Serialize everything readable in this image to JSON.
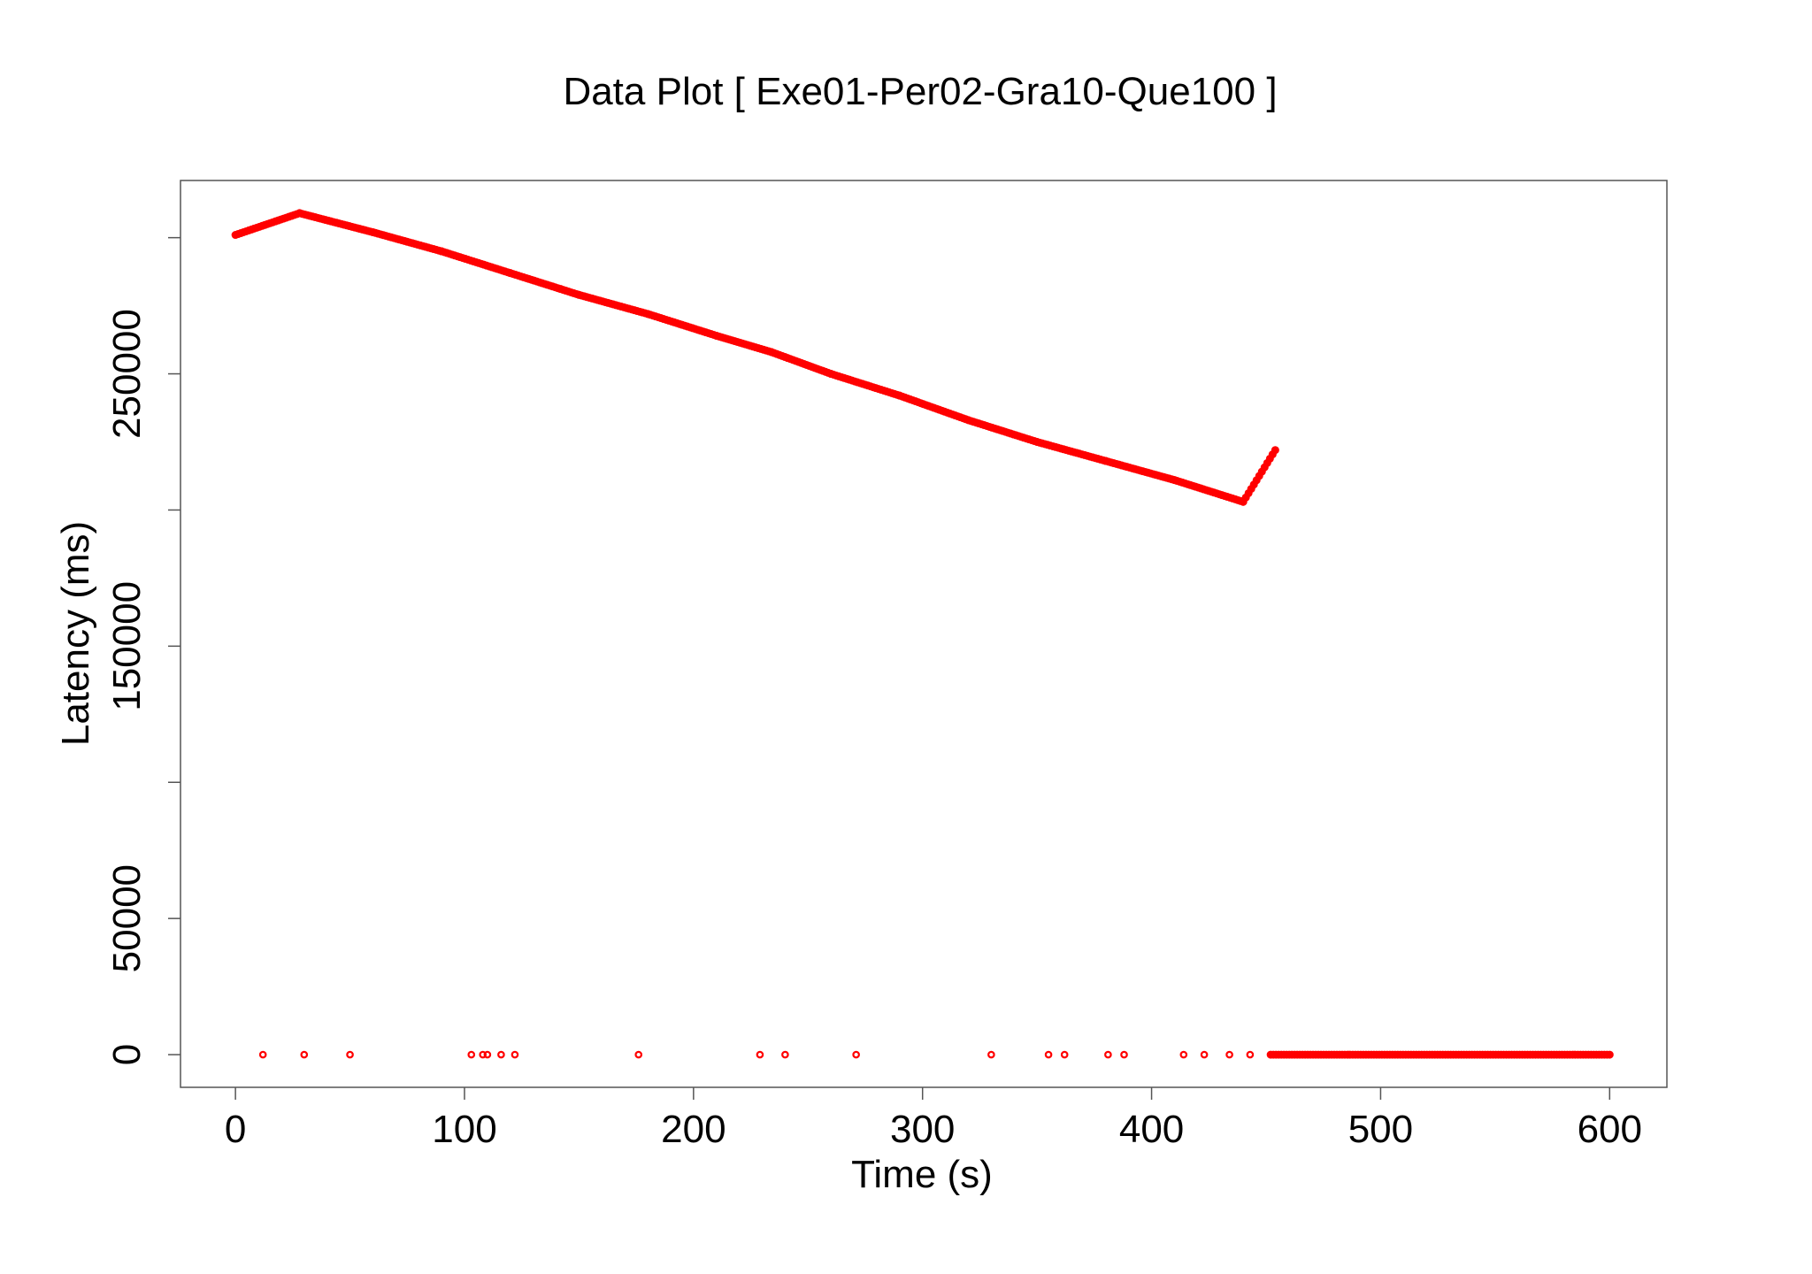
{
  "chart_data": {
    "type": "scatter",
    "title": "Data Plot [ Exe01-Per02-Gra10-Que100 ]",
    "xlabel": "Time (s)",
    "ylabel": "Latency (ms)",
    "xlim": [
      -24,
      625
    ],
    "ylim": [
      -12000,
      321000
    ],
    "x_ticks": [
      0,
      100,
      200,
      300,
      400,
      500,
      600
    ],
    "y_ticks": [
      0,
      50000,
      100000,
      150000,
      200000,
      250000,
      300000
    ],
    "y_tick_labels": [
      "0",
      "50000",
      "",
      "150000",
      "",
      "250000",
      ""
    ],
    "grid": false,
    "legend": "none",
    "point_color": "#ff0000",
    "series": [
      {
        "style": "dense",
        "x": [
          0,
          28,
          60,
          90,
          120,
          150,
          180,
          210,
          234,
          260,
          290,
          320,
          350,
          380,
          410,
          440,
          454
        ],
        "y": [
          301000,
          309000,
          302000,
          295000,
          287000,
          279000,
          272000,
          264000,
          258000,
          250000,
          242000,
          233000,
          225000,
          218000,
          211000,
          203000,
          222000
        ]
      },
      {
        "style": "sparse",
        "x": [
          12,
          30,
          50,
          103,
          108,
          110,
          116,
          122,
          176,
          229,
          240,
          271,
          330,
          355,
          362,
          381,
          388,
          414,
          423,
          434,
          443
        ],
        "y": [
          0,
          0,
          0,
          0,
          0,
          0,
          0,
          0,
          0,
          0,
          0,
          0,
          0,
          0,
          0,
          0,
          0,
          0,
          0,
          0,
          0
        ]
      },
      {
        "style": "dense",
        "x": [
          452,
          600
        ],
        "y": [
          0,
          0
        ]
      }
    ]
  }
}
